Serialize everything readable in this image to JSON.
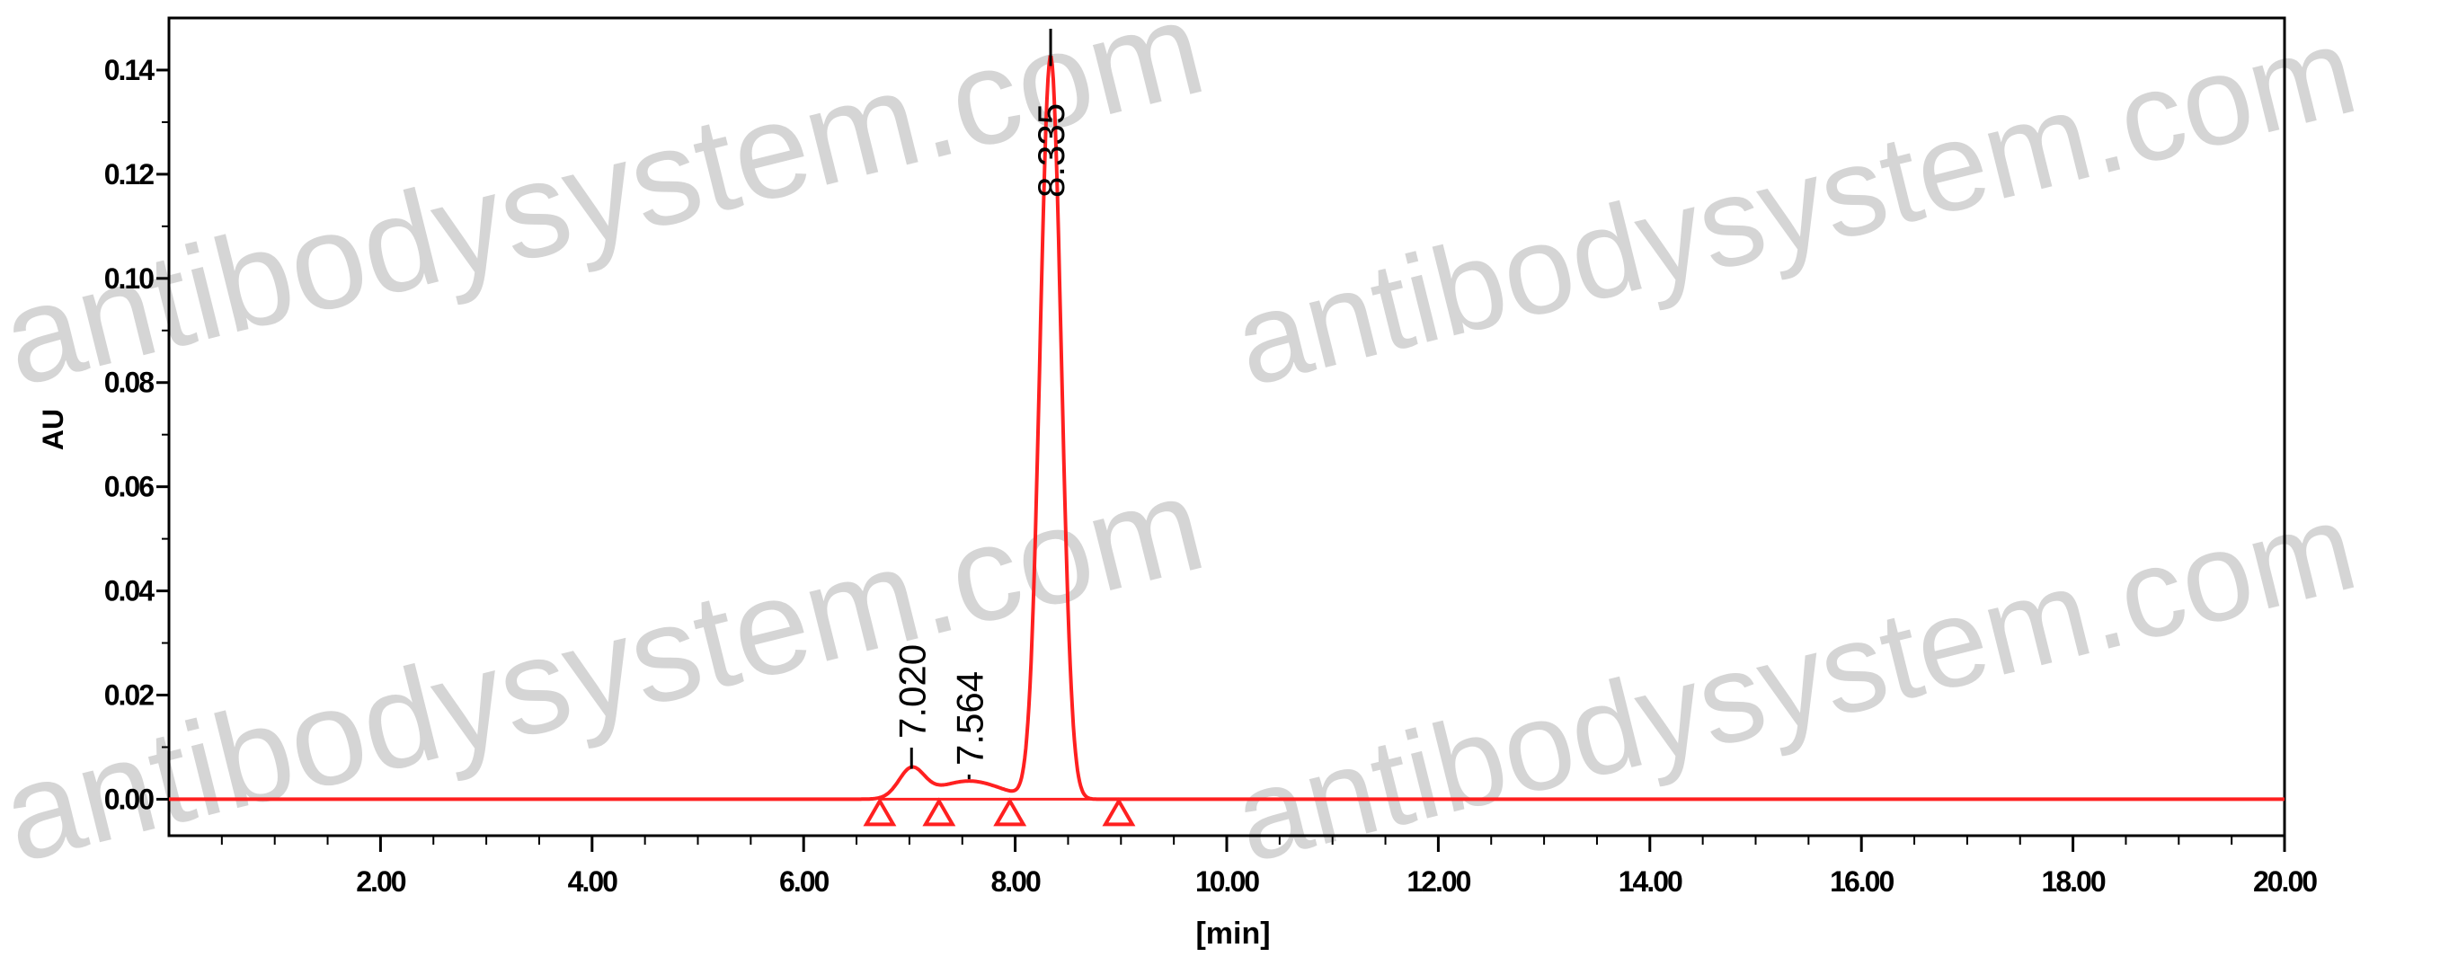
{
  "chart_data": {
    "type": "line",
    "title": "",
    "xlabel": "[min]",
    "ylabel": "AU",
    "xlim": [
      0,
      20
    ],
    "ylim": [
      -0.007,
      0.15
    ],
    "x_ticks": [
      2,
      4,
      6,
      8,
      10,
      12,
      14,
      16,
      18,
      20
    ],
    "x_tick_labels": [
      "2.00",
      "4.00",
      "6.00",
      "8.00",
      "10.00",
      "12.00",
      "14.00",
      "16.00",
      "18.00",
      "20.00"
    ],
    "y_ticks": [
      0,
      0.02,
      0.04,
      0.06,
      0.08,
      0.1,
      0.12,
      0.14
    ],
    "y_tick_labels": [
      "0.00",
      "0.02",
      "0.04",
      "0.06",
      "0.08",
      "0.10",
      "0.12",
      "0.14"
    ],
    "grid": false,
    "line_color": "#ff2020",
    "baseline": 0.0,
    "peaks": [
      {
        "label": "7.020",
        "rt": 7.02,
        "height": 0.0055,
        "width": 0.12
      },
      {
        "label": "7.564",
        "rt": 7.564,
        "height": 0.0035,
        "width": 0.3
      },
      {
        "label": "8.335",
        "rt": 8.335,
        "height": 0.1425,
        "width": 0.1
      }
    ],
    "integration_baseline": [
      [
        6.72,
        0.0
      ],
      [
        7.28,
        0.0
      ],
      [
        7.95,
        0.0
      ],
      [
        8.98,
        0.0
      ]
    ],
    "peak_markers": [
      6.72,
      7.28,
      7.95,
      8.98
    ]
  },
  "watermark": {
    "text": "antibodysystem.com",
    "color": "#b3b3b3"
  }
}
